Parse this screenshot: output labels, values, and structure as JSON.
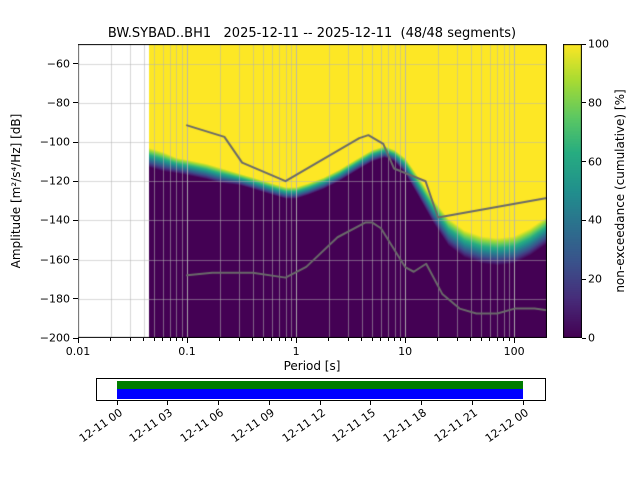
{
  "title": "BW.SYBAD..BH1   2025-12-11 -- 2025-12-11  (48/48 segments)",
  "chart_data": {
    "type": "heatmap",
    "title": "BW.SYBAD..BH1   2025-12-11 -- 2025-12-11  (48/48 segments)",
    "xlabel": "Period [s]",
    "ylabel": "Amplitude [m²/s⁴/Hz] [dB]",
    "xscale": "log",
    "xlim": [
      0.01,
      200
    ],
    "ylim": [
      -200,
      -50
    ],
    "grid": true,
    "xticks": {
      "values": [
        0.01,
        0.1,
        1,
        10,
        100
      ],
      "labels": [
        "0.01",
        "0.1",
        "1",
        "10",
        "100"
      ]
    },
    "yticks": {
      "values": [
        -200,
        -180,
        -160,
        -140,
        -120,
        -100,
        -80,
        -60
      ],
      "labels": [
        "−200",
        "−180",
        "−160",
        "−140",
        "−120",
        "−100",
        "−80",
        "−60"
      ]
    },
    "colormap": "viridis",
    "colorbar": {
      "label": "non-exceedance (cumulative) [%]",
      "range": [
        0,
        100
      ],
      "ticks": {
        "values": [
          0,
          20,
          40,
          60,
          80,
          100
        ],
        "labels": [
          "0",
          "20",
          "40",
          "60",
          "80",
          "100"
        ]
      }
    },
    "distribution": {
      "note": "cumulative PPSD: non-exceedance rises from 0% at db_low to 100% at db_high for each period",
      "data_period_range": [
        0.045,
        200
      ],
      "periods": [
        0.045,
        0.06,
        0.08,
        0.1,
        0.15,
        0.2,
        0.3,
        0.4,
        0.6,
        0.8,
        1.0,
        1.3,
        1.8,
        2.5,
        3.5,
        5.0,
        6.5,
        8.0,
        10,
        13,
        18,
        25,
        35,
        50,
        70,
        100,
        140,
        200
      ],
      "db_low": [
        -113,
        -115,
        -116,
        -117,
        -119,
        -121,
        -122,
        -124,
        -127,
        -129,
        -129,
        -127,
        -124,
        -120,
        -115,
        -110,
        -108,
        -110,
        -116,
        -127,
        -141,
        -153,
        -159,
        -162,
        -163,
        -162,
        -158,
        -152
      ],
      "db_high": [
        -103,
        -105,
        -108,
        -109,
        -111,
        -113,
        -116,
        -118,
        -121,
        -123,
        -123,
        -121,
        -118,
        -114,
        -109,
        -104,
        -102,
        -104,
        -108,
        -117,
        -129,
        -139,
        -145,
        -148,
        -149,
        -148,
        -144,
        -138
      ]
    },
    "noise_models": {
      "color": "#6a6a6a",
      "nhnm": [
        [
          0.1,
          -91.5
        ],
        [
          0.22,
          -97.4
        ],
        [
          0.32,
          -110.5
        ],
        [
          0.8,
          -120.0
        ],
        [
          3.8,
          -98.0
        ],
        [
          4.6,
          -96.5
        ],
        [
          6.3,
          -101.0
        ],
        [
          7.9,
          -113.5
        ],
        [
          15.4,
          -120.0
        ],
        [
          20.0,
          -138.5
        ],
        [
          200,
          -128.5
        ]
      ],
      "nlnm": [
        [
          0.1,
          -168.0
        ],
        [
          0.17,
          -166.7
        ],
        [
          0.4,
          -166.7
        ],
        [
          0.8,
          -169.2
        ],
        [
          1.24,
          -163.7
        ],
        [
          2.4,
          -148.6
        ],
        [
          4.3,
          -141.1
        ],
        [
          5.0,
          -141.1
        ],
        [
          6.0,
          -144.0
        ],
        [
          10.0,
          -163.8
        ],
        [
          12.0,
          -166.2
        ],
        [
          15.6,
          -162.1
        ],
        [
          21.9,
          -177.5
        ],
        [
          31.6,
          -185.0
        ],
        [
          45.0,
          -187.5
        ],
        [
          70.0,
          -187.5
        ],
        [
          101.0,
          -185.0
        ],
        [
          154.0,
          -185.0
        ],
        [
          200,
          -185.9
        ]
      ]
    },
    "viridis_stops": [
      [
        0,
        "#440154"
      ],
      [
        0.13,
        "#472c7a"
      ],
      [
        0.25,
        "#3b518b"
      ],
      [
        0.38,
        "#2c718e"
      ],
      [
        0.5,
        "#21908d"
      ],
      [
        0.63,
        "#27ad81"
      ],
      [
        0.75,
        "#5cc863"
      ],
      [
        0.88,
        "#aadc32"
      ],
      [
        1,
        "#fde725"
      ]
    ],
    "grid_color": "#b4b4b4",
    "timeline": {
      "tick_labels": [
        "12-11 00",
        "12-11 03",
        "12-11 06",
        "12-11 09",
        "12-11 12",
        "12-11 15",
        "12-11 18",
        "12-11 21",
        "12-12 00"
      ],
      "segments_color": "#007c00",
      "coverage_color": "#0000ff",
      "coverage_frac": [
        0.047,
        0.949
      ]
    }
  }
}
